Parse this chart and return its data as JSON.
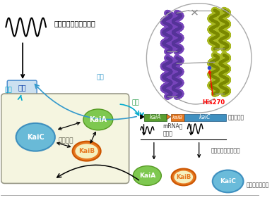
{
  "bg_color": "#ffffff",
  "circadian_text": "サーカディアンリズム",
  "output_text": "出力",
  "promote1_text": "促進",
  "inhibit_text": "抑制",
  "promote2_text": "促進",
  "mutual_text": "相互作用",
  "gene_label": "時計遣伝子",
  "mrna_label": "mRNAへ\nの転写",
  "protein_label": "タンパク質への翻訳",
  "clock_protein_label": "時計タンパク質",
  "kaiA_color": "#7ec850",
  "kaiB_color": "#e67820",
  "kaiC_color": "#5ab4d6",
  "box_bg": "#f5f5e0",
  "gene_kaiA_color": "#5a9e30",
  "gene_kaiB_color": "#e67820",
  "gene_kaiC_color": "#4090c0",
  "promote_color": "#00aacc",
  "inhibit_color": "#3399cc",
  "promote2_color": "#229944",
  "arrow_color": "#333333"
}
